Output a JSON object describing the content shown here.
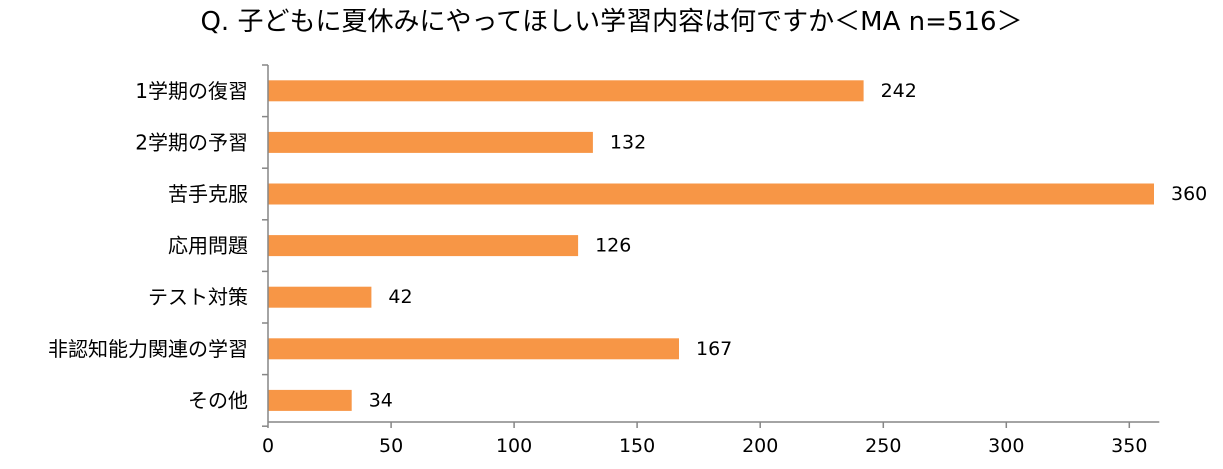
{
  "chart_data": {
    "type": "bar",
    "orientation": "horizontal",
    "title": "Q. 子どもに夏休みにやってほしい学習内容は何ですか＜MA n=516＞",
    "categories": [
      "1学期の復習",
      "2学期の予習",
      "苦手克服",
      "応用問題",
      "テスト対策",
      "非認知能力関連の学習",
      "その他"
    ],
    "values": [
      242,
      132,
      360,
      126,
      42,
      167,
      34
    ],
    "xlim": [
      0,
      350
    ],
    "x_ticks": [
      0,
      50,
      100,
      150,
      200,
      250,
      300,
      350
    ],
    "xlabel": "",
    "ylabel": "",
    "grid": false,
    "legend": "none",
    "bar_color": "#F79646",
    "axis_color": "#868686"
  }
}
